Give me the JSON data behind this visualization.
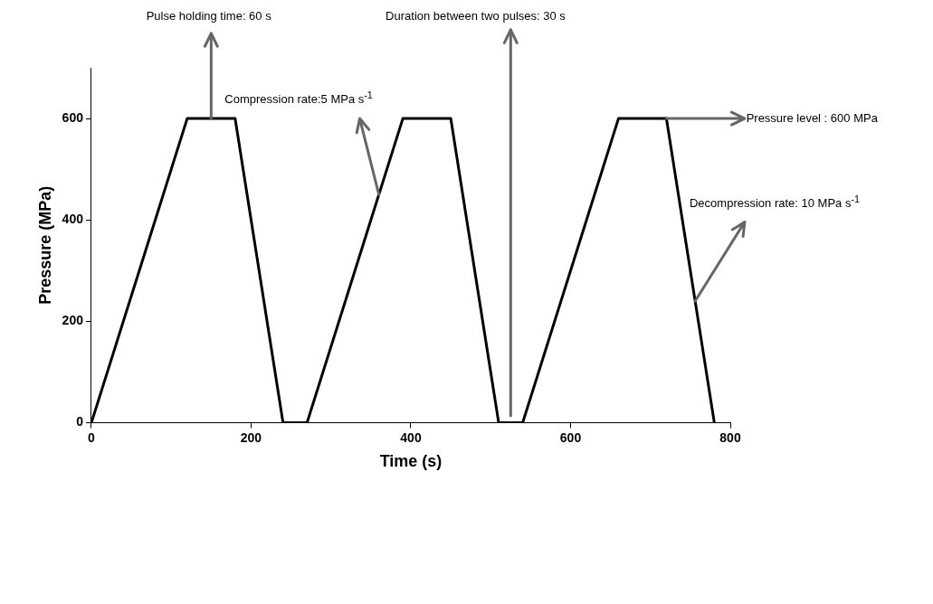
{
  "chart_data": {
    "type": "line",
    "xlabel": "Time (s)",
    "ylabel": "Pressure (MPa)",
    "x": [
      0,
      120,
      180,
      240,
      270,
      390,
      450,
      510,
      540,
      660,
      720,
      780
    ],
    "series": [
      {
        "color": "#000000",
        "values": [
          0,
          600,
          600,
          0,
          0,
          600,
          600,
          0,
          0,
          600,
          600,
          0
        ]
      }
    ],
    "xlim": [
      0,
      800
    ],
    "xticks": [
      0,
      200,
      400,
      600,
      800
    ],
    "ylim": [
      0,
      700
    ],
    "yticks": [
      0,
      200,
      400,
      600
    ],
    "grid": false,
    "legend": false,
    "marker": "none",
    "line_style": "solid",
    "annotations": [
      {
        "text": "Pulse holding time: 60 s",
        "x": 150,
        "y": 600
      },
      {
        "text": "Compression rate:5 MPa s$^{-1}$",
        "x": 360,
        "y": 450
      },
      "Duration between two pulses: 30 s",
      {
        "text": "Pressure level : 600 MPa",
        "x": 720,
        "y": 600
      },
      {
        "text": "Decompression rate: 10 MPa s$^{-1}$",
        "x": 756,
        "y": 240
      }
    ],
    "ref_lines": [
      {
        "axis": "x",
        "value": 525,
        "color": "#666666"
      }
    ]
  }
}
